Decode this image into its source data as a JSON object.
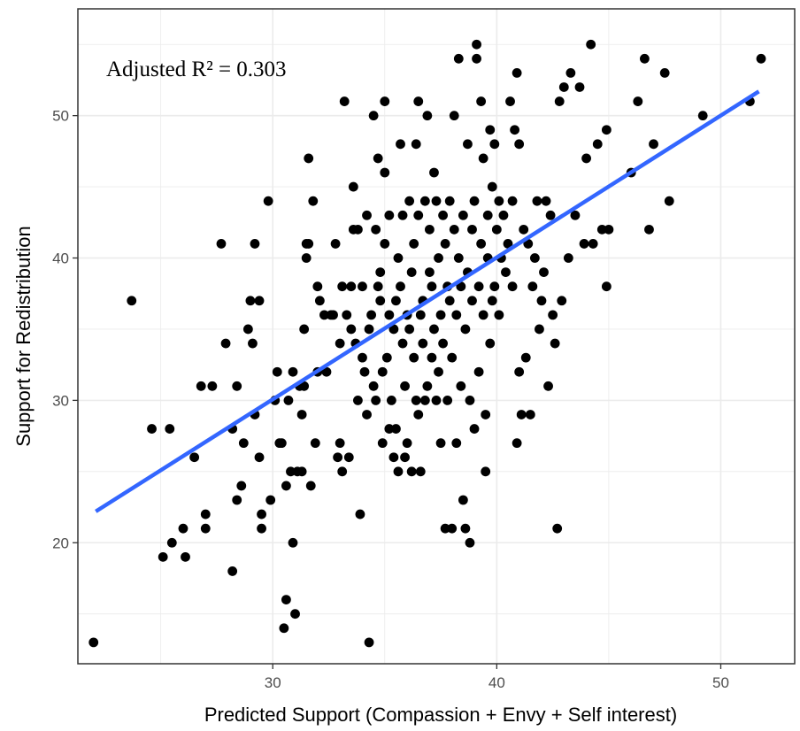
{
  "chart_data": {
    "type": "scatter",
    "title": "",
    "xlabel": "Predicted Support (Compassion + Envy + Self interest)",
    "ylabel": "Support for Redistribution",
    "annotation": "Adjusted R² = 0.303",
    "xlim": [
      21.3,
      53.3
    ],
    "ylim": [
      11.5,
      57.5
    ],
    "x_ticks": [
      30,
      40,
      50
    ],
    "y_ticks": [
      20,
      30,
      40,
      50
    ],
    "grid": true,
    "colors": {
      "points": "#000000",
      "trend": "#3366ff",
      "grid": "#ebebeb",
      "panel_border": "#333333"
    },
    "trend_line": {
      "x": [
        22.1,
        51.7
      ],
      "y": [
        22.2,
        51.7
      ]
    },
    "points": [
      [
        22.0,
        13
      ],
      [
        23.7,
        37
      ],
      [
        24.6,
        28
      ],
      [
        25.1,
        19
      ],
      [
        25.4,
        28
      ],
      [
        25.5,
        20
      ],
      [
        26.0,
        21
      ],
      [
        26.1,
        19
      ],
      [
        26.5,
        26
      ],
      [
        26.8,
        31
      ],
      [
        27.0,
        22
      ],
      [
        27.0,
        21
      ],
      [
        27.3,
        31
      ],
      [
        27.7,
        41
      ],
      [
        27.9,
        34
      ],
      [
        28.2,
        18
      ],
      [
        28.2,
        28
      ],
      [
        28.4,
        23
      ],
      [
        28.4,
        31
      ],
      [
        28.6,
        24
      ],
      [
        28.7,
        27
      ],
      [
        28.9,
        35
      ],
      [
        29.0,
        37
      ],
      [
        29.1,
        34
      ],
      [
        29.2,
        41
      ],
      [
        29.2,
        29
      ],
      [
        29.4,
        26
      ],
      [
        29.4,
        37
      ],
      [
        29.5,
        22
      ],
      [
        29.5,
        21
      ],
      [
        29.8,
        44
      ],
      [
        29.9,
        23
      ],
      [
        30.1,
        30
      ],
      [
        30.2,
        32
      ],
      [
        30.3,
        27
      ],
      [
        30.4,
        27
      ],
      [
        30.5,
        14
      ],
      [
        30.6,
        24
      ],
      [
        30.6,
        16
      ],
      [
        30.7,
        30
      ],
      [
        30.8,
        25
      ],
      [
        30.9,
        20
      ],
      [
        30.9,
        32
      ],
      [
        31.0,
        15
      ],
      [
        31.1,
        25
      ],
      [
        31.2,
        31
      ],
      [
        31.3,
        25
      ],
      [
        31.3,
        29
      ],
      [
        31.4,
        31
      ],
      [
        31.4,
        35
      ],
      [
        31.5,
        40
      ],
      [
        31.5,
        41
      ],
      [
        31.6,
        47
      ],
      [
        31.6,
        41
      ],
      [
        31.7,
        24
      ],
      [
        31.8,
        44
      ],
      [
        31.9,
        27
      ],
      [
        32.0,
        32
      ],
      [
        32.0,
        38
      ],
      [
        32.1,
        37
      ],
      [
        32.3,
        36
      ],
      [
        32.4,
        32
      ],
      [
        32.6,
        36
      ],
      [
        32.7,
        36
      ],
      [
        32.8,
        41
      ],
      [
        32.9,
        26
      ],
      [
        33.0,
        27
      ],
      [
        33.0,
        34
      ],
      [
        33.1,
        25
      ],
      [
        33.1,
        38
      ],
      [
        33.2,
        51
      ],
      [
        33.3,
        36
      ],
      [
        33.4,
        26
      ],
      [
        33.5,
        35
      ],
      [
        33.5,
        38
      ],
      [
        33.6,
        42
      ],
      [
        33.6,
        45
      ],
      [
        33.7,
        34
      ],
      [
        33.8,
        30
      ],
      [
        33.8,
        42
      ],
      [
        33.9,
        22
      ],
      [
        34.0,
        38
      ],
      [
        34.0,
        33
      ],
      [
        34.1,
        32
      ],
      [
        34.2,
        29
      ],
      [
        34.2,
        43
      ],
      [
        34.3,
        13
      ],
      [
        34.3,
        35
      ],
      [
        34.4,
        36
      ],
      [
        34.5,
        31
      ],
      [
        34.5,
        50
      ],
      [
        34.6,
        30
      ],
      [
        34.6,
        42
      ],
      [
        34.7,
        38
      ],
      [
        34.7,
        47
      ],
      [
        34.8,
        37
      ],
      [
        34.8,
        39
      ],
      [
        34.9,
        27
      ],
      [
        34.9,
        32
      ],
      [
        35.0,
        51
      ],
      [
        35.0,
        46
      ],
      [
        35.0,
        41
      ],
      [
        35.1,
        33
      ],
      [
        35.2,
        28
      ],
      [
        35.2,
        36
      ],
      [
        35.2,
        43
      ],
      [
        35.3,
        30
      ],
      [
        35.4,
        26
      ],
      [
        35.4,
        35
      ],
      [
        35.5,
        28
      ],
      [
        35.5,
        37
      ],
      [
        35.6,
        25
      ],
      [
        35.6,
        40
      ],
      [
        35.7,
        48
      ],
      [
        35.7,
        38
      ],
      [
        35.8,
        34
      ],
      [
        35.8,
        43
      ],
      [
        35.9,
        26
      ],
      [
        35.9,
        31
      ],
      [
        36.0,
        27
      ],
      [
        36.0,
        36
      ],
      [
        36.1,
        44
      ],
      [
        36.1,
        35
      ],
      [
        36.2,
        25
      ],
      [
        36.2,
        39
      ],
      [
        36.3,
        33
      ],
      [
        36.3,
        41
      ],
      [
        36.4,
        48
      ],
      [
        36.4,
        30
      ],
      [
        36.5,
        51
      ],
      [
        36.5,
        29
      ],
      [
        36.5,
        43
      ],
      [
        36.6,
        36
      ],
      [
        36.6,
        25
      ],
      [
        36.7,
        34
      ],
      [
        36.7,
        37
      ],
      [
        36.8,
        44
      ],
      [
        36.8,
        30
      ],
      [
        36.9,
        50
      ],
      [
        36.9,
        31
      ],
      [
        37.0,
        39
      ],
      [
        37.0,
        42
      ],
      [
        37.1,
        33
      ],
      [
        37.1,
        38
      ],
      [
        37.2,
        46
      ],
      [
        37.2,
        35
      ],
      [
        37.3,
        30
      ],
      [
        37.3,
        44
      ],
      [
        37.4,
        32
      ],
      [
        37.4,
        40
      ],
      [
        37.5,
        27
      ],
      [
        37.5,
        36
      ],
      [
        37.6,
        43
      ],
      [
        37.6,
        34
      ],
      [
        37.7,
        21
      ],
      [
        37.7,
        41
      ],
      [
        37.8,
        38
      ],
      [
        37.8,
        30
      ],
      [
        37.9,
        37
      ],
      [
        37.9,
        44
      ],
      [
        38.0,
        21
      ],
      [
        38.0,
        33
      ],
      [
        38.1,
        42
      ],
      [
        38.1,
        50
      ],
      [
        38.2,
        36
      ],
      [
        38.2,
        27
      ],
      [
        38.3,
        54
      ],
      [
        38.3,
        40
      ],
      [
        38.4,
        38
      ],
      [
        38.4,
        31
      ],
      [
        38.5,
        23
      ],
      [
        38.5,
        43
      ],
      [
        38.6,
        21
      ],
      [
        38.6,
        35
      ],
      [
        38.7,
        39
      ],
      [
        38.7,
        48
      ],
      [
        38.8,
        20
      ],
      [
        38.8,
        30
      ],
      [
        38.9,
        42
      ],
      [
        38.9,
        37
      ],
      [
        39.0,
        28
      ],
      [
        39.0,
        44
      ],
      [
        39.1,
        54
      ],
      [
        39.1,
        55
      ],
      [
        39.2,
        38
      ],
      [
        39.2,
        32
      ],
      [
        39.3,
        41
      ],
      [
        39.3,
        51
      ],
      [
        39.4,
        36
      ],
      [
        39.4,
        47
      ],
      [
        39.5,
        25
      ],
      [
        39.5,
        29
      ],
      [
        39.6,
        43
      ],
      [
        39.6,
        40
      ],
      [
        39.7,
        49
      ],
      [
        39.7,
        34
      ],
      [
        39.8,
        37
      ],
      [
        39.8,
        45
      ],
      [
        39.9,
        48
      ],
      [
        39.9,
        38
      ],
      [
        40.0,
        42
      ],
      [
        40.1,
        44
      ],
      [
        40.1,
        36
      ],
      [
        40.2,
        40
      ],
      [
        40.3,
        43
      ],
      [
        40.4,
        39
      ],
      [
        40.5,
        41
      ],
      [
        40.6,
        51
      ],
      [
        40.7,
        38
      ],
      [
        40.7,
        44
      ],
      [
        40.8,
        49
      ],
      [
        40.9,
        53
      ],
      [
        40.9,
        27
      ],
      [
        41.0,
        32
      ],
      [
        41.0,
        48
      ],
      [
        41.1,
        29
      ],
      [
        41.2,
        42
      ],
      [
        41.3,
        33
      ],
      [
        41.4,
        41
      ],
      [
        41.5,
        29
      ],
      [
        41.6,
        38
      ],
      [
        41.7,
        40
      ],
      [
        41.8,
        44
      ],
      [
        41.9,
        35
      ],
      [
        42.0,
        37
      ],
      [
        42.1,
        39
      ],
      [
        42.2,
        44
      ],
      [
        42.3,
        31
      ],
      [
        42.4,
        43
      ],
      [
        42.5,
        36
      ],
      [
        42.6,
        34
      ],
      [
        42.7,
        21
      ],
      [
        42.8,
        51
      ],
      [
        42.9,
        37
      ],
      [
        43.0,
        52
      ],
      [
        43.2,
        40
      ],
      [
        43.3,
        53
      ],
      [
        43.5,
        43
      ],
      [
        43.7,
        52
      ],
      [
        43.9,
        41
      ],
      [
        44.0,
        47
      ],
      [
        44.2,
        55
      ],
      [
        44.3,
        41
      ],
      [
        44.5,
        48
      ],
      [
        44.7,
        42
      ],
      [
        44.9,
        49
      ],
      [
        44.9,
        38
      ],
      [
        45.0,
        42
      ],
      [
        46.0,
        46
      ],
      [
        46.3,
        51
      ],
      [
        46.6,
        54
      ],
      [
        46.8,
        42
      ],
      [
        47.0,
        48
      ],
      [
        47.5,
        53
      ],
      [
        47.7,
        44
      ],
      [
        49.2,
        50
      ],
      [
        51.3,
        51
      ],
      [
        51.8,
        54
      ]
    ]
  }
}
